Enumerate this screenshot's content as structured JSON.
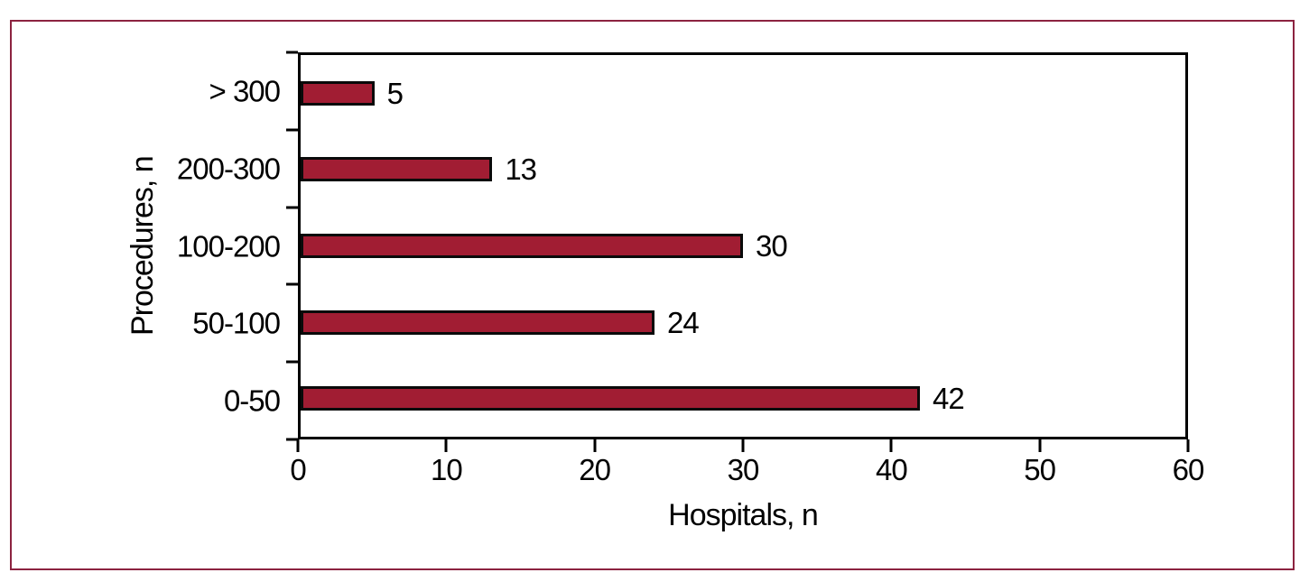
{
  "figure": {
    "frame_color": "#8C2340",
    "background_color": "#ffffff"
  },
  "chart_data": {
    "type": "bar",
    "orientation": "horizontal",
    "title": "",
    "categories": [
      "> 300",
      "200-300",
      "100-200",
      "50-100",
      "0-50"
    ],
    "values": [
      5,
      13,
      30,
      24,
      42
    ],
    "data_labels": [
      "5",
      "13",
      "30",
      "24",
      "42"
    ],
    "xlabel": "Hospitals, n",
    "ylabel": "Procedures, n",
    "xlim": [
      0,
      60
    ],
    "x_ticks": [
      "0",
      "10",
      "20",
      "30",
      "40",
      "50",
      "60"
    ],
    "x_tick_values": [
      0,
      10,
      20,
      30,
      40,
      50,
      60
    ],
    "bar_color": "#A11D33",
    "bar_border_color": "#0a0a0a",
    "axis_color": "#000000",
    "grid": false,
    "legend": false
  }
}
